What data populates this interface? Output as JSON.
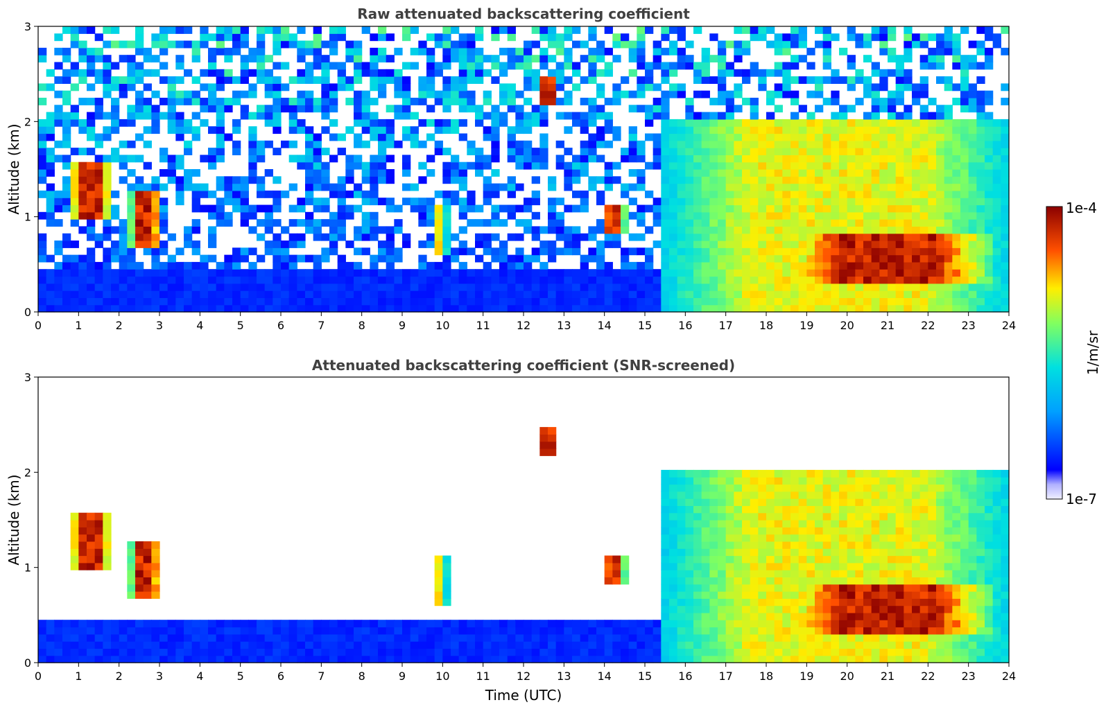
{
  "chart_data": [
    {
      "type": "heatmap",
      "title": "Raw attenuated backscattering coefficient",
      "xlabel": "",
      "ylabel": "Altitude (km)",
      "xlim": [
        0,
        24
      ],
      "ylim": [
        0,
        3
      ],
      "x_ticks": [
        "0",
        "1",
        "2",
        "3",
        "4",
        "5",
        "6",
        "7",
        "8",
        "9",
        "10",
        "11",
        "12",
        "13",
        "14",
        "15",
        "16",
        "17",
        "18",
        "19",
        "20",
        "21",
        "22",
        "23",
        "24"
      ],
      "y_ticks": [
        "0",
        "1",
        "2",
        "3"
      ],
      "features": [
        {
          "name": "cloud",
          "t": [
            0.8,
            1.8
          ],
          "alt": [
            1.0,
            1.6
          ],
          "level": 1.0
        },
        {
          "name": "cloud",
          "t": [
            2.3,
            3.0
          ],
          "alt": [
            0.7,
            1.3
          ],
          "level": 1.0
        },
        {
          "name": "cloud",
          "t": [
            9.8,
            10.1
          ],
          "alt": [
            0.6,
            1.1
          ],
          "level": 0.8
        },
        {
          "name": "cloud",
          "t": [
            12.4,
            12.8
          ],
          "alt": [
            2.2,
            2.5
          ],
          "level": 1.0
        },
        {
          "name": "cloud",
          "t": [
            14.0,
            14.5
          ],
          "alt": [
            0.8,
            1.1
          ],
          "level": 1.0
        },
        {
          "name": "aerosol-layer",
          "t": [
            15.5,
            24.0
          ],
          "alt": [
            0.0,
            2.0
          ],
          "level": 0.75
        },
        {
          "name": "cloud-layer",
          "t": [
            18.5,
            23.5
          ],
          "alt": [
            0.3,
            0.8
          ],
          "level": 1.0
        }
      ]
    },
    {
      "type": "heatmap",
      "title": "Attenuated backscattering coefficient (SNR-screened)",
      "xlabel": "Time (UTC)",
      "ylabel": "Altitude (km)",
      "xlim": [
        0,
        24
      ],
      "ylim": [
        0,
        3
      ],
      "x_ticks": [
        "0",
        "1",
        "2",
        "3",
        "4",
        "5",
        "6",
        "7",
        "8",
        "9",
        "10",
        "11",
        "12",
        "13",
        "14",
        "15",
        "16",
        "17",
        "18",
        "19",
        "20",
        "21",
        "22",
        "23",
        "24"
      ],
      "y_ticks": [
        "0",
        "1",
        "2",
        "3"
      ],
      "features": [
        {
          "name": "cloud",
          "t": [
            0.8,
            1.8
          ],
          "alt": [
            1.0,
            1.6
          ],
          "level": 1.0
        },
        {
          "name": "cloud",
          "t": [
            2.3,
            3.0
          ],
          "alt": [
            0.7,
            1.3
          ],
          "level": 1.0
        },
        {
          "name": "cloud",
          "t": [
            9.8,
            10.1
          ],
          "alt": [
            0.6,
            1.1
          ],
          "level": 0.8
        },
        {
          "name": "cloud",
          "t": [
            12.4,
            12.8
          ],
          "alt": [
            2.2,
            2.5
          ],
          "level": 1.0
        },
        {
          "name": "cloud",
          "t": [
            14.0,
            14.5
          ],
          "alt": [
            0.8,
            1.1
          ],
          "level": 1.0
        },
        {
          "name": "aerosol-layer",
          "t": [
            15.5,
            24.0
          ],
          "alt": [
            0.0,
            2.0
          ],
          "level": 0.75
        },
        {
          "name": "cloud-layer",
          "t": [
            18.5,
            23.5
          ],
          "alt": [
            0.3,
            0.8
          ],
          "level": 1.0
        }
      ]
    }
  ],
  "colorbar": {
    "label": "1/m/sr",
    "max_label": "1e-4",
    "min_label": "1e-7",
    "range": [
      1e-07,
      0.0001
    ],
    "scale": "log"
  }
}
